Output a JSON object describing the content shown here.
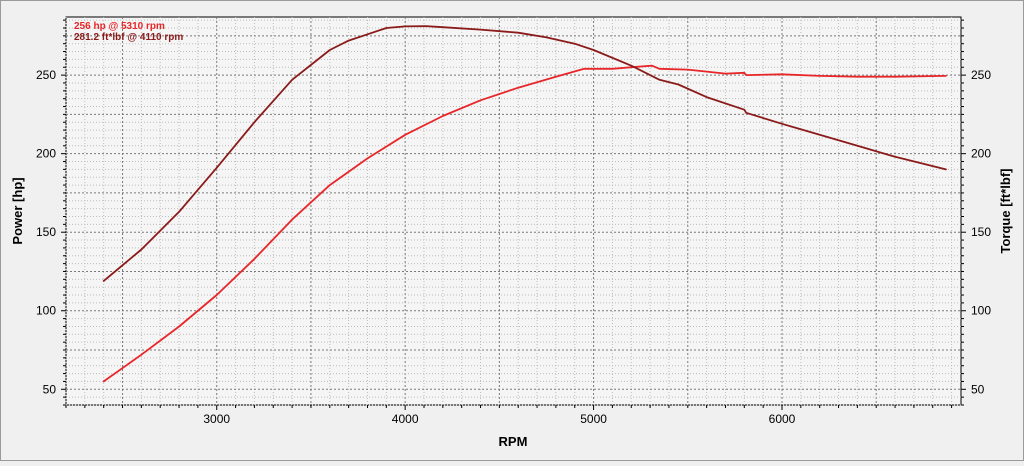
{
  "chart_data": {
    "type": "line",
    "xlabel": "RPM",
    "ylabel_left": "Power [hp]",
    "ylabel_right": "Torque [ft*lbf]",
    "xlim": [
      2200,
      6950
    ],
    "ylim_left": [
      40,
      287
    ],
    "ylim_right": [
      40,
      287
    ],
    "x_ticks": [
      3000,
      4000,
      5000,
      6000
    ],
    "y_ticks_left": [
      50,
      100,
      150,
      200,
      250
    ],
    "y_ticks_right": [
      50,
      100,
      150,
      200,
      250
    ],
    "grid": true,
    "annotations": [
      {
        "text": "256 hp @ 5310 rpm",
        "color": "#e8262a"
      },
      {
        "text": "281.2 ft*lbf @ 4110 rpm",
        "color": "#8b1a1a"
      }
    ],
    "series": [
      {
        "color": "#e8262a",
        "axis": "left",
        "x": [
          2400,
          2600,
          2800,
          3000,
          3200,
          3400,
          3600,
          3800,
          4000,
          4200,
          4400,
          4600,
          4800,
          4950,
          5100,
          5250,
          5310,
          5350,
          5500,
          5700,
          5800,
          5810,
          6000,
          6200,
          6400,
          6600,
          6870
        ],
        "values": [
          55,
          72,
          90,
          110,
          133,
          158,
          180,
          197,
          212,
          224,
          234,
          242,
          249,
          254,
          254,
          255.5,
          256,
          254,
          253.5,
          251,
          251.5,
          250,
          250.5,
          249.5,
          249,
          249,
          249.5
        ]
      },
      {
        "color": "#8b1a1a",
        "axis": "right",
        "x": [
          2400,
          2600,
          2800,
          3000,
          3200,
          3400,
          3600,
          3700,
          3800,
          3900,
          4000,
          4110,
          4200,
          4400,
          4600,
          4750,
          4900,
          5000,
          5200,
          5350,
          5450,
          5600,
          5800,
          5810,
          6000,
          6200,
          6400,
          6600,
          6870
        ],
        "values": [
          119,
          139,
          163,
          191,
          220,
          247,
          266,
          272,
          276,
          280,
          281,
          281.2,
          280.5,
          279,
          277,
          274,
          270,
          266,
          256,
          247,
          244,
          236,
          228,
          226,
          219,
          212,
          205,
          198,
          190
        ]
      }
    ]
  }
}
